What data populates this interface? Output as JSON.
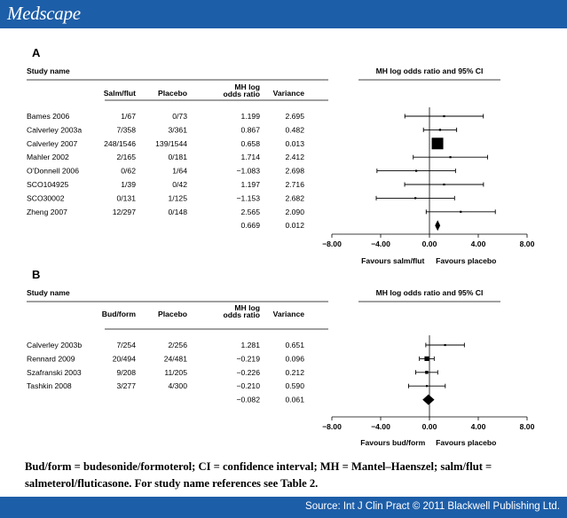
{
  "header": {
    "logo": "Medscape"
  },
  "footer": {
    "source": "Source: Int J Clin Pract © 2011 Blackwell Publishing Ltd."
  },
  "caption": "Bud/form = budesonide/formoterol; CI = confidence interval; MH = Mantel–Haenszel; salm/flut = salmeterol/fluticasone. For study name references see Table 2.",
  "chart_data": [
    {
      "type": "forest",
      "panel": "A",
      "study_header": "Study name",
      "col_headers": [
        "Salm/flut",
        "Placebo",
        "MH log odds ratio",
        "Variance"
      ],
      "plot_title": "MH log odds ratio and 95% CI",
      "xlim": [
        -8,
        8
      ],
      "xticks": [
        "-8.00",
        "-4.00",
        "0.00",
        "4.00",
        "8.00"
      ],
      "xlabel_left": "Favours salm/flut",
      "xlabel_right": "Favours placebo",
      "studies": [
        {
          "name": "Bames 2006",
          "treat": "1/67",
          "placebo": "0/73",
          "lor": "1.199",
          "variance": "2.695"
        },
        {
          "name": "Calverley 2003a",
          "treat": "7/358",
          "placebo": "3/361",
          "lor": "0.867",
          "variance": "0.482"
        },
        {
          "name": "Calverley 2007",
          "treat": "248/1546",
          "placebo": "139/1544",
          "lor": "0.658",
          "variance": "0.013"
        },
        {
          "name": "Mahler 2002",
          "treat": "2/165",
          "placebo": "0/181",
          "lor": "1.714",
          "variance": "2.412"
        },
        {
          "name": "O'Donnell 2006",
          "treat": "0/62",
          "placebo": "1/64",
          "lor": "−1.083",
          "variance": "2.698"
        },
        {
          "name": "SCO104925",
          "treat": "1/39",
          "placebo": "0/42",
          "lor": "1.197",
          "variance": "2.716"
        },
        {
          "name": "SCO30002",
          "treat": "0/131",
          "placebo": "1/125",
          "lor": "−1.153",
          "variance": "2.682"
        },
        {
          "name": "Zheng 2007",
          "treat": "12/297",
          "placebo": "0/148",
          "lor": "2.565",
          "variance": "2.090"
        }
      ],
      "summary": {
        "lor": "0.669",
        "variance": "0.012"
      }
    },
    {
      "type": "forest",
      "panel": "B",
      "study_header": "Study name",
      "col_headers": [
        "Bud/form",
        "Placebo",
        "MH log odds ratio",
        "Variance"
      ],
      "plot_title": "MH log odds ratio and 95% CI",
      "xlim": [
        -8,
        8
      ],
      "xticks": [
        "-8.00",
        "-4.00",
        "0.00",
        "4.00",
        "8.00"
      ],
      "xlabel_left": "Favours bud/form",
      "xlabel_right": "Favours placebo",
      "studies": [
        {
          "name": "Calverley 2003b",
          "treat": "7/254",
          "placebo": "2/256",
          "lor": "1.281",
          "variance": "0.651"
        },
        {
          "name": "Rennard 2009",
          "treat": "20/494",
          "placebo": "24/481",
          "lor": "−0.219",
          "variance": "0.096"
        },
        {
          "name": "Szafranski 2003",
          "treat": "9/208",
          "placebo": "11/205",
          "lor": "−0.226",
          "variance": "0.212"
        },
        {
          "name": "Tashkin 2008",
          "treat": "3/277",
          "placebo": "4/300",
          "lor": "−0.210",
          "variance": "0.590"
        }
      ],
      "summary": {
        "lor": "−0.082",
        "variance": "0.061"
      }
    }
  ]
}
